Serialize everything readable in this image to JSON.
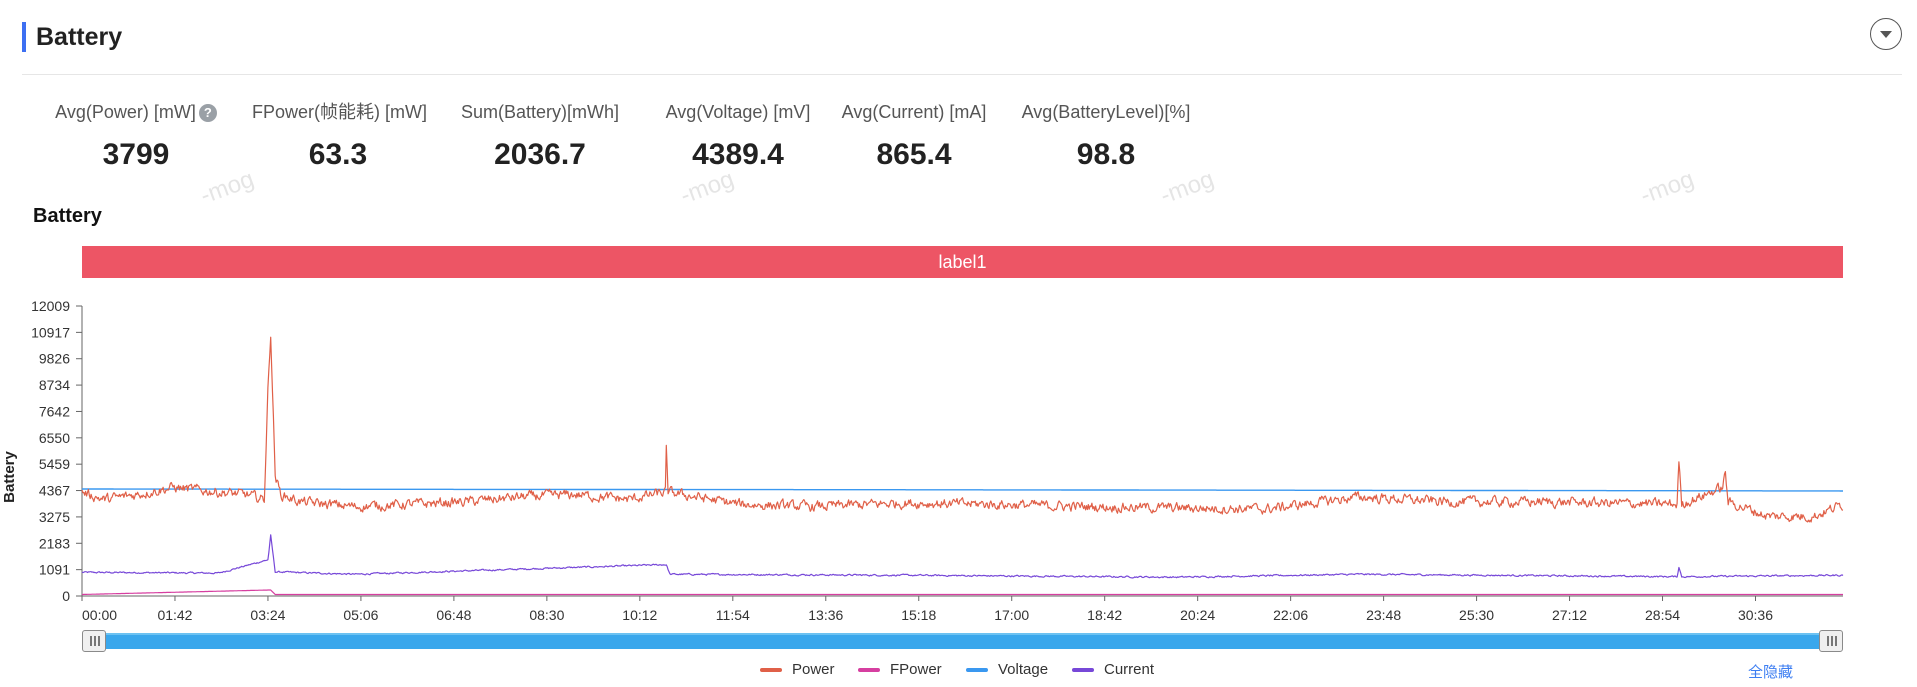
{
  "header": {
    "title": "Battery"
  },
  "stats": [
    {
      "label": "Avg(Power) [mW]",
      "value": "3799",
      "help": "?"
    },
    {
      "label": "FPower(帧能耗) [mW]",
      "value": "63.3"
    },
    {
      "label": "Sum(Battery)[mWh]",
      "value": "2036.7"
    },
    {
      "label": "Avg(Voltage) [mV]",
      "value": "4389.4"
    },
    {
      "label": "Avg(Current) [mA]",
      "value": "865.4"
    },
    {
      "label": "Avg(BatteryLevel)[%]",
      "value": "98.8"
    }
  ],
  "watermark_text": "-mog",
  "legend_action": "全隐藏",
  "chart_data": {
    "type": "line",
    "title": "Battery",
    "ylabel": "Battery",
    "xlabel": "",
    "label_band": "label1",
    "ylim": [
      0,
      12009
    ],
    "yticks": [
      0,
      1091,
      2183,
      3275,
      4367,
      5459,
      6550,
      7642,
      8734,
      9826,
      10917,
      12009
    ],
    "xticks": [
      "00:00",
      "01:42",
      "03:24",
      "05:06",
      "06:48",
      "08:30",
      "10:12",
      "11:54",
      "13:36",
      "15:18",
      "17:00",
      "18:42",
      "20:24",
      "22:06",
      "23:48",
      "25:30",
      "27:12",
      "28:54",
      "30:36"
    ],
    "duration_seconds": 1932,
    "grid": false,
    "legend_position": "bottom-center",
    "series": [
      {
        "name": "Power",
        "color": "#e06048",
        "baseline": 3800,
        "keypoints": [
          [
            0,
            4300
          ],
          [
            24,
            4000
          ],
          [
            60,
            4200
          ],
          [
            100,
            4500
          ],
          [
            150,
            4300
          ],
          [
            180,
            4200
          ],
          [
            200,
            4000
          ],
          [
            204,
            8500
          ],
          [
            207,
            10917
          ],
          [
            212,
            5000
          ],
          [
            218,
            4200
          ],
          [
            240,
            3900
          ],
          [
            300,
            3700
          ],
          [
            360,
            3800
          ],
          [
            420,
            3900
          ],
          [
            480,
            4100
          ],
          [
            540,
            4200
          ],
          [
            600,
            4000
          ],
          [
            640,
            4300
          ],
          [
            641,
            6000
          ],
          [
            643,
            4300
          ],
          [
            720,
            3800
          ],
          [
            800,
            3700
          ],
          [
            900,
            3850
          ],
          [
            1000,
            3800
          ],
          [
            1100,
            3700
          ],
          [
            1200,
            3650
          ],
          [
            1300,
            3600
          ],
          [
            1400,
            4100
          ],
          [
            1500,
            3900
          ],
          [
            1600,
            3900
          ],
          [
            1750,
            3800
          ],
          [
            1752,
            5600
          ],
          [
            1755,
            3800
          ],
          [
            1800,
            4500
          ],
          [
            1803,
            5100
          ],
          [
            1806,
            3900
          ],
          [
            1850,
            3300
          ],
          [
            1900,
            3300
          ],
          [
            1932,
            3800
          ]
        ]
      },
      {
        "name": "FPower",
        "color": "#d63fa0",
        "baseline": 63,
        "keypoints": [
          [
            0,
            63
          ],
          [
            207,
            250
          ],
          [
            212,
            63
          ],
          [
            1932,
            63
          ]
        ]
      },
      {
        "name": "Voltage",
        "color": "#3a98f0",
        "baseline": 4389,
        "keypoints": [
          [
            0,
            4430
          ],
          [
            900,
            4400
          ],
          [
            1932,
            4350
          ]
        ]
      },
      {
        "name": "Current",
        "color": "#7748d8",
        "baseline": 865,
        "keypoints": [
          [
            0,
            980
          ],
          [
            150,
            950
          ],
          [
            204,
            1500
          ],
          [
            207,
            2500
          ],
          [
            212,
            1000
          ],
          [
            300,
            900
          ],
          [
            641,
            1300
          ],
          [
            645,
            900
          ],
          [
            900,
            860
          ],
          [
            1200,
            780
          ],
          [
            1400,
            900
          ],
          [
            1750,
            800
          ],
          [
            1752,
            1200
          ],
          [
            1755,
            800
          ],
          [
            1932,
            860
          ]
        ]
      }
    ]
  }
}
